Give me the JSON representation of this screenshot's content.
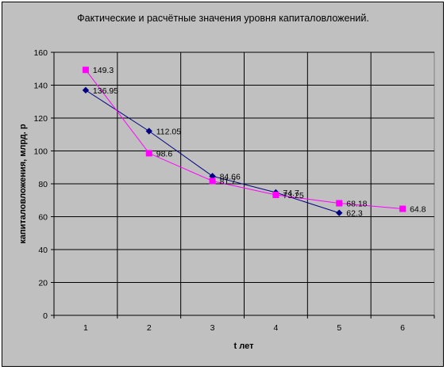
{
  "chart_data": {
    "type": "line",
    "title": "Фактические и расчётные значения уровня капиталовложений.",
    "xlabel": "t лет",
    "ylabel": "капиталовложения, млрд. р",
    "categories": [
      "1",
      "2",
      "3",
      "4",
      "5",
      "6"
    ],
    "ylim": [
      0,
      160
    ],
    "yticks": [
      "0",
      "20",
      "40",
      "60",
      "80",
      "100",
      "120",
      "140",
      "160"
    ],
    "grid": true,
    "legend": "none",
    "series": [
      {
        "x": [
          1,
          2,
          3,
          4,
          5
        ],
        "values": [
          136.95,
          112.05,
          84.66,
          74.7,
          62.3
        ],
        "labels": [
          "136.95",
          "112.05",
          "84.66",
          "74.7",
          "62.3"
        ],
        "color": "#000080",
        "marker": "diamond"
      },
      {
        "x": [
          1,
          2,
          3,
          4,
          5,
          6
        ],
        "values": [
          149.3,
          98.6,
          81.7,
          73.25,
          68.18,
          64.8
        ],
        "labels": [
          "149.3",
          "98.6",
          "81.7",
          "73.25",
          "68.18",
          "64.8"
        ],
        "color": "#ff00ff",
        "marker": "square"
      }
    ],
    "plot_background": "#c0c0c0",
    "frame_background": "#c0c0c0"
  }
}
